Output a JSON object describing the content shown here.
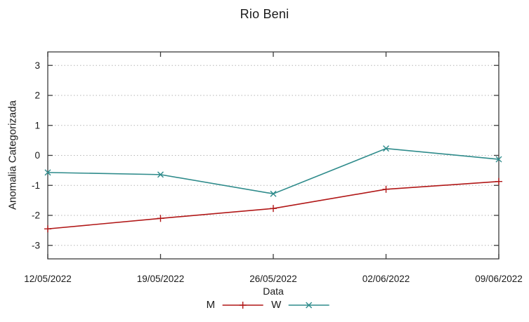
{
  "chart_data": {
    "type": "line",
    "title": "Rio Beni",
    "xlabel": "Data",
    "ylabel": "Anomalia Categorizada",
    "categories": [
      "12/05/2022",
      "19/05/2022",
      "26/05/2022",
      "02/06/2022",
      "09/06/2022"
    ],
    "series": [
      {
        "name": "M",
        "color": "#b11717",
        "marker": "plus",
        "values": [
          -2.45,
          -2.1,
          -1.77,
          -1.13,
          -0.87
        ]
      },
      {
        "name": "W",
        "color": "#2e8b8b",
        "marker": "cross",
        "values": [
          -0.57,
          -0.64,
          -1.28,
          0.23,
          -0.13
        ]
      }
    ],
    "yticks": [
      -3,
      -2,
      -1,
      0,
      1,
      2,
      3
    ],
    "ylim": [
      -3.45,
      3.45
    ],
    "grid": "horizontal-dotted",
    "grid_color": "#b5b5b5",
    "border_color": "#3c3c3c",
    "tick_label_color": "#1a1a1a",
    "legend_position": "bottom-center"
  }
}
